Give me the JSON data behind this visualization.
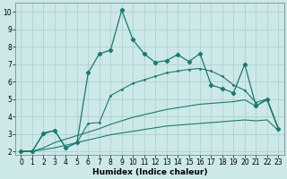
{
  "xlabel": "Humidex (Indice chaleur)",
  "bg_color": "#cce8e8",
  "line_color": "#1a7a6e",
  "xlim": [
    -0.5,
    23.5
  ],
  "ylim": [
    1.8,
    10.5
  ],
  "yticks": [
    2,
    3,
    4,
    5,
    6,
    7,
    8,
    9,
    10
  ],
  "xticks": [
    0,
    1,
    2,
    3,
    4,
    5,
    6,
    7,
    8,
    9,
    10,
    11,
    12,
    13,
    14,
    15,
    16,
    17,
    18,
    19,
    20,
    21,
    22,
    23
  ],
  "line1_x": [
    0,
    1,
    2,
    3,
    4,
    5,
    6,
    7,
    8,
    9,
    10,
    11,
    12,
    13,
    14,
    15,
    16,
    17,
    18,
    19,
    20,
    21,
    22,
    23
  ],
  "line1_y": [
    2.0,
    2.0,
    2.1,
    2.2,
    2.35,
    2.5,
    2.65,
    2.8,
    2.95,
    3.05,
    3.15,
    3.25,
    3.35,
    3.45,
    3.5,
    3.55,
    3.6,
    3.65,
    3.7,
    3.75,
    3.8,
    3.75,
    3.8,
    3.2
  ],
  "line2_x": [
    0,
    1,
    2,
    3,
    4,
    5,
    6,
    7,
    8,
    9,
    10,
    11,
    12,
    13,
    14,
    15,
    16,
    17,
    18,
    19,
    20,
    21,
    22,
    23
  ],
  "line2_y": [
    2.0,
    2.0,
    2.2,
    2.5,
    2.7,
    2.9,
    3.1,
    3.3,
    3.55,
    3.75,
    3.95,
    4.1,
    4.25,
    4.4,
    4.5,
    4.6,
    4.7,
    4.75,
    4.8,
    4.85,
    4.95,
    4.6,
    4.95,
    3.3
  ],
  "line3_x": [
    0,
    1,
    2,
    3,
    4,
    5,
    6,
    7,
    8,
    9,
    10,
    11,
    12,
    13,
    14,
    15,
    16,
    17,
    18,
    19,
    20,
    21,
    22,
    23
  ],
  "line3_y": [
    2.0,
    2.0,
    3.0,
    3.2,
    2.2,
    2.5,
    3.6,
    3.65,
    5.2,
    5.55,
    5.9,
    6.1,
    6.3,
    6.5,
    6.6,
    6.7,
    6.75,
    6.6,
    6.3,
    5.8,
    5.5,
    4.8,
    5.0,
    3.3
  ],
  "line4_x": [
    0,
    1,
    2,
    3,
    4,
    5,
    6,
    7,
    8,
    9,
    10,
    11,
    12,
    13,
    14,
    15,
    16,
    17,
    18,
    19,
    20,
    21,
    22,
    23
  ],
  "line4_y": [
    2.0,
    2.0,
    3.05,
    3.2,
    2.2,
    2.5,
    6.5,
    7.6,
    7.8,
    10.1,
    8.4,
    7.6,
    7.1,
    7.2,
    7.55,
    7.15,
    7.6,
    5.8,
    5.6,
    5.35,
    7.0,
    4.6,
    5.0,
    3.3
  ],
  "grid_color": "#aacccc",
  "xlabel_fontsize": 6.5,
  "tick_fontsize": 5.5
}
